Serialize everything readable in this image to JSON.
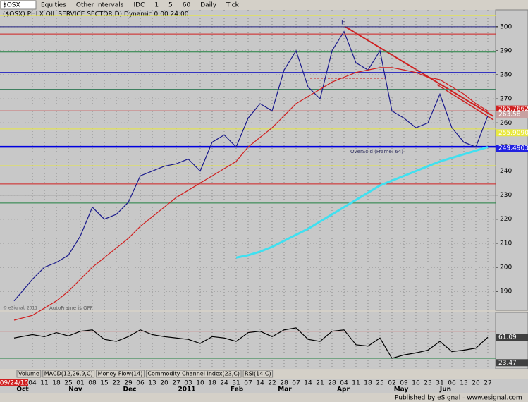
{
  "toolbar": {
    "symbol": "$OSX",
    "items": [
      "Equities",
      "Other Intervals",
      "IDC",
      "1",
      "5",
      "60",
      "Daily",
      "Tick"
    ]
  },
  "chart_data": [
    {
      "type": "line",
      "title": "($OSX) PHLX OIL SERVICE SECTOR,D) Dynamic 0:00 24:00",
      "categories": [
        "09/24/10",
        "04",
        "11",
        "18",
        "25",
        "01",
        "08",
        "15",
        "22",
        "29",
        "06",
        "13",
        "20",
        "27",
        "03",
        "10",
        "18",
        "24",
        "31",
        "07",
        "14",
        "22",
        "28",
        "07",
        "14",
        "21",
        "28",
        "04",
        "11",
        "18",
        "25",
        "02",
        "09",
        "16",
        "23",
        "31",
        "06",
        "13",
        "20",
        "27"
      ],
      "months": [
        "Oct",
        "Nov",
        "Dec",
        "2011",
        "Feb",
        "Mar",
        "Apr",
        "May",
        "Jun"
      ],
      "series": [
        {
          "color": "#1a1a8c",
          "values": [
            186,
            195,
            200,
            202,
            205,
            213,
            225,
            220,
            222,
            227,
            238,
            240,
            242,
            243,
            245,
            240,
            252,
            255,
            250,
            262,
            268,
            265,
            282,
            290,
            275,
            270,
            290,
            298,
            285,
            282,
            290,
            265,
            262,
            258,
            260,
            272,
            258,
            252,
            250,
            263
          ]
        },
        {
          "color": "#d02020",
          "values": [
            178,
            180,
            183,
            186,
            190,
            195,
            200,
            204,
            208,
            212,
            217,
            221,
            225,
            229,
            232,
            235,
            238,
            241,
            244,
            250,
            254,
            258,
            263,
            268,
            271,
            274,
            277,
            279,
            281,
            282,
            283,
            283,
            282,
            281,
            279,
            278,
            275,
            272,
            268,
            265
          ]
        },
        {
          "color": "#40e0f0",
          "values": [
            null,
            null,
            null,
            null,
            null,
            null,
            null,
            null,
            null,
            null,
            null,
            null,
            null,
            null,
            null,
            null,
            null,
            null,
            204,
            205,
            206.5,
            208.5,
            211,
            213.5,
            216,
            219,
            222,
            225,
            228,
            231,
            234,
            236,
            238,
            240,
            242,
            244,
            245.5,
            247,
            248.5,
            250
          ]
        }
      ],
      "ylim": [
        182.1,
        307
      ],
      "yticks": [
        190,
        200,
        210,
        220,
        230,
        240,
        250,
        260,
        270,
        280,
        290,
        300
      ],
      "grid": true,
      "levels": [
        {
          "value": 304.7,
          "color": "#e8e840"
        },
        {
          "value": 300,
          "color": "#202080"
        },
        {
          "value": 297,
          "color": "#d02020"
        },
        {
          "value": 289.5,
          "color": "#208040"
        },
        {
          "value": 281,
          "color": "#2020c0"
        },
        {
          "value": 274,
          "color": "#408060"
        },
        {
          "value": 265,
          "color": "#d02020"
        },
        {
          "value": 257.5,
          "color": "#e8e840"
        },
        {
          "value": 250.1,
          "color": "#0000e0"
        },
        {
          "value": 242.2,
          "color": "#e8e840"
        },
        {
          "value": 234.6,
          "color": "#d02020"
        },
        {
          "value": 230,
          "color": "#404040"
        },
        {
          "value": 226.7,
          "color": "#208040"
        }
      ],
      "value_boxes": [
        {
          "value": 265.7662,
          "color": "#d02020"
        },
        {
          "value": 263.58,
          "color": "#c8a0a0"
        },
        {
          "value": 255.90903,
          "color": "#e8e840"
        },
        {
          "value": 249.4903,
          "color": "#2020e0"
        }
      ],
      "annotations": [
        "OverSold (Frame: 64)",
        "AutoFrame is OFF",
        "© eSignal, 2011"
      ]
    },
    {
      "type": "line",
      "series": [
        {
          "color": "#000000",
          "values": [
            60,
            65,
            62,
            68,
            63,
            70,
            72,
            58,
            55,
            62,
            72,
            65,
            62,
            60,
            58,
            52,
            62,
            60,
            55,
            68,
            70,
            62,
            72,
            75,
            58,
            55,
            70,
            72,
            50,
            48,
            60,
            30,
            35,
            38,
            42,
            55,
            40,
            42,
            45,
            61.09
          ]
        }
      ],
      "ylim": [
        14.4,
        97.8
      ],
      "levels": [
        {
          "value": 70,
          "color": "#d02020"
        },
        {
          "value": 30,
          "color": "#208040"
        }
      ],
      "value_boxes": [
        {
          "value": 61.09,
          "color": "#404040"
        },
        {
          "value": 23.47,
          "color": "#404040"
        }
      ],
      "tabs": [
        "Volume",
        "MACD(12,26,9,C)",
        "Money Flow(14)",
        "Commodity Channel Index(23,C)",
        "RSI(14,C)"
      ]
    }
  ],
  "footer": "Published by eSignal - www.esignal.com"
}
